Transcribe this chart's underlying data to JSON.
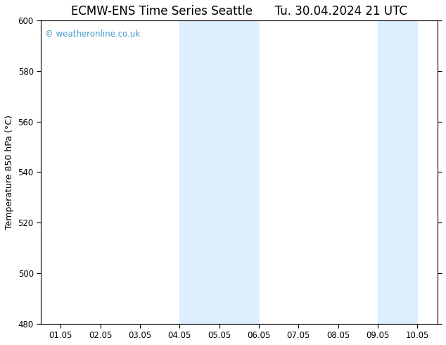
{
  "title": "ECMW-ENS Time Series Seattle      Tu. 30.04.2024 21 UTC",
  "ylabel": "Temperature 850 hPa (°C)",
  "ylim": [
    480,
    600
  ],
  "yticks": [
    480,
    500,
    520,
    540,
    560,
    580,
    600
  ],
  "xtick_labels": [
    "01.05",
    "02.05",
    "03.05",
    "04.05",
    "05.05",
    "06.05",
    "07.05",
    "08.05",
    "09.05",
    "10.05"
  ],
  "background_color": "#ffffff",
  "plot_bg_color": "#ffffff",
  "shaded_regions": [
    {
      "xstart": 3,
      "xend": 4,
      "color": "#ddeeff"
    },
    {
      "xstart": 4,
      "xend": 5,
      "color": "#ddeeff"
    },
    {
      "xstart": 8,
      "xend": 9,
      "color": "#ddeeff"
    }
  ],
  "watermark_text": "© weatheronline.co.uk",
  "watermark_color": "#4499cc",
  "title_fontsize": 12,
  "label_fontsize": 9,
  "tick_fontsize": 8.5,
  "border_color": "#000000"
}
